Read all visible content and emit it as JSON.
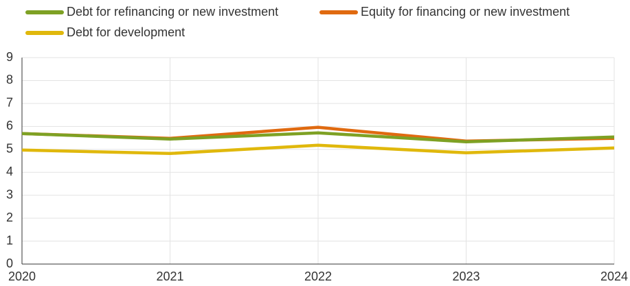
{
  "chart_data": {
    "type": "line",
    "x": [
      2020,
      2021,
      2022,
      2023,
      2024
    ],
    "series": [
      {
        "name": "Debt for refinancing or new investment",
        "color": "#7ea124",
        "values": [
          5.69,
          5.45,
          5.72,
          5.33,
          5.54
        ]
      },
      {
        "name": "Equity for financing or new investment",
        "color": "#e06a10",
        "values": [
          5.69,
          5.48,
          5.96,
          5.36,
          5.48
        ]
      },
      {
        "name": "Debt for development",
        "color": "#e0b80c",
        "values": [
          4.97,
          4.82,
          5.18,
          4.85,
          5.06
        ]
      }
    ],
    "xlim": [
      2020,
      2024
    ],
    "xticks": [
      2020,
      2021,
      2022,
      2023,
      2024
    ],
    "ylim": [
      0,
      9
    ],
    "yticks": [
      0,
      1,
      2,
      3,
      4,
      5,
      6,
      7,
      8,
      9
    ],
    "grid": true,
    "legend": "top"
  }
}
